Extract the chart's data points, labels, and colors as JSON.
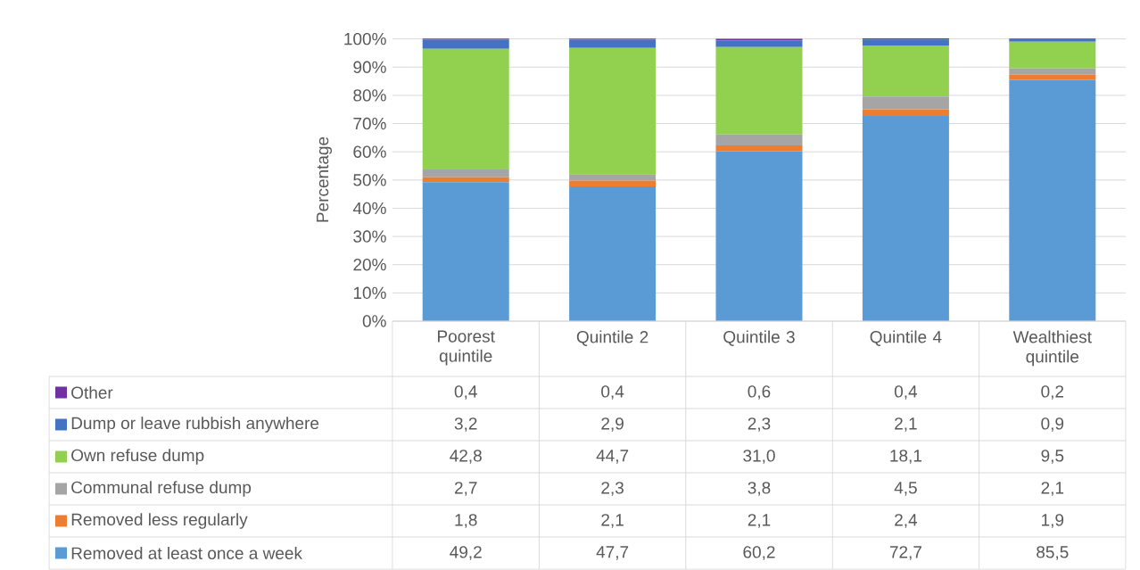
{
  "chart_data": {
    "type": "bar",
    "stacked": true,
    "ylabel": "Percentage",
    "categories": [
      "Poorest quintile",
      "Quintile 2",
      "Quintile 3",
      "Quintile 4",
      "Wealthiest quintile"
    ],
    "series": [
      {
        "name": "Removed at least once a week",
        "color": "#5b9bd5",
        "values": [
          49.2,
          47.7,
          60.2,
          72.7,
          85.5
        ],
        "value_labels": [
          "49,2",
          "47,7",
          "60,2",
          "72,7",
          "85,5"
        ]
      },
      {
        "name": "Removed less regularly",
        "color": "#ed7d31",
        "values": [
          1.8,
          2.1,
          2.1,
          2.4,
          1.9
        ],
        "value_labels": [
          "1,8",
          "2,1",
          "2,1",
          "2,4",
          "1,9"
        ]
      },
      {
        "name": "Communal refuse dump",
        "color": "#a5a5a5",
        "values": [
          2.7,
          2.3,
          3.8,
          4.5,
          2.1
        ],
        "value_labels": [
          "2,7",
          "2,3",
          "3,8",
          "4,5",
          "2,1"
        ]
      },
      {
        "name": "Own refuse dump",
        "color": "#92d050",
        "values": [
          42.8,
          44.7,
          31.0,
          18.1,
          9.5
        ],
        "value_labels": [
          "42,8",
          "44,7",
          "31,0",
          "18,1",
          "9,5"
        ]
      },
      {
        "name": "Dump or leave rubbish anywhere",
        "color": "#4472c4",
        "values": [
          3.2,
          2.9,
          2.3,
          2.1,
          0.9
        ],
        "value_labels": [
          "3,2",
          "2,9",
          "2,3",
          "2,1",
          "0,9"
        ]
      },
      {
        "name": "Other",
        "color": "#7030a0",
        "values": [
          0.4,
          0.4,
          0.6,
          0.4,
          0.2
        ],
        "value_labels": [
          "0,4",
          "0,4",
          "0,6",
          "0,4",
          "0,2"
        ]
      }
    ],
    "ylim": [
      0,
      100.2
    ],
    "yticks": [
      {
        "value": 0,
        "label": "0%"
      },
      {
        "value": 10,
        "label": "10%"
      },
      {
        "value": 20,
        "label": "20%"
      },
      {
        "value": 30,
        "label": "30%"
      },
      {
        "value": 40,
        "label": "40%"
      },
      {
        "value": 50,
        "label": "50%"
      },
      {
        "value": 60,
        "label": "60%"
      },
      {
        "value": 70,
        "label": "70%"
      },
      {
        "value": 80,
        "label": "80%"
      },
      {
        "value": 90,
        "label": "90%"
      },
      {
        "value": 100,
        "label": "100%"
      }
    ],
    "grid": "y",
    "legend": "bottom"
  }
}
